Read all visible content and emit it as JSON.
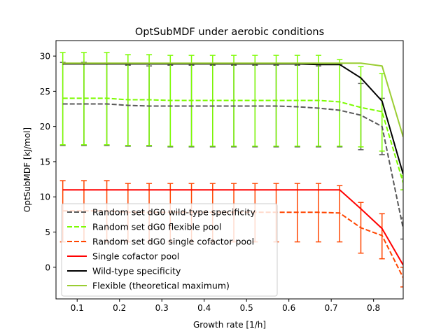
{
  "chart_data": {
    "type": "line",
    "title": "OptSubMDF under aerobic conditions",
    "xlabel": "Growth rate [1/h]",
    "ylabel": "OptSubMDF [kJ/mol]",
    "xlim": [
      0.05,
      0.87
    ],
    "ylim": [
      -4.5,
      32.2
    ],
    "xticks": [
      0.1,
      0.2,
      0.3,
      0.4,
      0.5,
      0.6,
      0.7,
      0.8
    ],
    "xtick_labels": [
      "0.1",
      "0.2",
      "0.3",
      "0.4",
      "0.5",
      "0.6",
      "0.7",
      "0.8"
    ],
    "yticks": [
      0,
      5,
      10,
      15,
      20,
      25,
      30
    ],
    "ytick_labels": [
      "0",
      "5",
      "10",
      "15",
      "20",
      "25",
      "30"
    ],
    "grid": false,
    "legend_position": "lower-left",
    "x": [
      0.066,
      0.116,
      0.17,
      0.22,
      0.27,
      0.32,
      0.37,
      0.42,
      0.47,
      0.52,
      0.57,
      0.62,
      0.67,
      0.72,
      0.77,
      0.82,
      0.87
    ],
    "series": [
      {
        "name": "Random set dG0 wild-type specificity",
        "color": "#595959",
        "dashed": true,
        "values": [
          23.2,
          23.2,
          23.2,
          23.0,
          22.9,
          22.9,
          22.9,
          22.9,
          22.9,
          22.9,
          22.9,
          22.8,
          22.6,
          22.3,
          21.6,
          20.0,
          5.5
        ],
        "err_low": [
          17.3,
          17.3,
          17.3,
          17.2,
          17.2,
          17.1,
          17.1,
          17.1,
          17.1,
          17.1,
          17.1,
          17.1,
          17.1,
          17.1,
          16.7,
          16.0,
          4.0
        ],
        "err_high": [
          29.1,
          29.1,
          29.0,
          28.7,
          28.6,
          28.7,
          28.7,
          28.7,
          28.7,
          28.7,
          28.7,
          28.7,
          28.6,
          28.8,
          26.1,
          24.0,
          7.0
        ]
      },
      {
        "name": "Random set dG0 flexible pool",
        "color": "#7cfc00",
        "dashed": true,
        "values": [
          24.0,
          24.0,
          24.0,
          23.8,
          23.8,
          23.7,
          23.7,
          23.7,
          23.7,
          23.7,
          23.7,
          23.7,
          23.7,
          23.5,
          22.7,
          22.1,
          12.0
        ],
        "err_low": [
          17.4,
          17.4,
          17.4,
          17.3,
          17.3,
          17.2,
          17.2,
          17.2,
          17.2,
          17.2,
          17.2,
          17.2,
          17.2,
          17.2,
          17.1,
          16.5,
          11.0
        ],
        "err_high": [
          30.5,
          30.5,
          30.5,
          30.2,
          30.2,
          30.1,
          30.1,
          30.1,
          30.1,
          30.1,
          30.1,
          30.1,
          30.1,
          29.5,
          28.5,
          27.5,
          13.0
        ]
      },
      {
        "name": "Random set dG0 single cofactor pool",
        "color": "#ff4500",
        "dashed": true,
        "values": [
          8.0,
          8.0,
          8.0,
          7.8,
          7.8,
          7.8,
          7.8,
          7.8,
          7.8,
          7.8,
          7.8,
          7.8,
          7.8,
          7.7,
          5.6,
          4.5,
          -1.5
        ],
        "err_low": [
          3.6,
          3.6,
          3.6,
          3.6,
          3.6,
          3.6,
          3.6,
          3.6,
          3.6,
          3.6,
          3.6,
          3.6,
          3.6,
          3.6,
          2.0,
          1.2,
          -2.8
        ],
        "err_high": [
          12.3,
          12.3,
          12.3,
          11.9,
          11.9,
          11.9,
          11.9,
          11.9,
          11.9,
          11.9,
          11.9,
          11.9,
          11.9,
          11.6,
          9.2,
          7.6,
          0.0
        ]
      },
      {
        "name": "Single cofactor pool",
        "color": "#ff0000",
        "dashed": false,
        "values": [
          11.0,
          11.0,
          11.0,
          11.0,
          11.0,
          11.0,
          11.0,
          11.0,
          11.0,
          11.0,
          11.0,
          11.0,
          11.0,
          11.0,
          8.3,
          5.5,
          0.3
        ]
      },
      {
        "name": "Wild-type specificity",
        "color": "#000000",
        "dashed": false,
        "values": [
          28.9,
          28.9,
          28.9,
          28.9,
          28.9,
          28.9,
          28.9,
          28.9,
          28.9,
          28.9,
          28.9,
          28.9,
          28.8,
          28.8,
          26.9,
          23.6,
          13.2
        ]
      },
      {
        "name": "Flexible (theoretical maximum)",
        "color": "#9acd32",
        "dashed": false,
        "values": [
          29.0,
          29.0,
          29.0,
          29.0,
          29.0,
          29.0,
          29.0,
          29.0,
          29.0,
          29.0,
          29.0,
          29.0,
          29.0,
          29.0,
          29.0,
          28.6,
          18.5
        ]
      }
    ]
  }
}
